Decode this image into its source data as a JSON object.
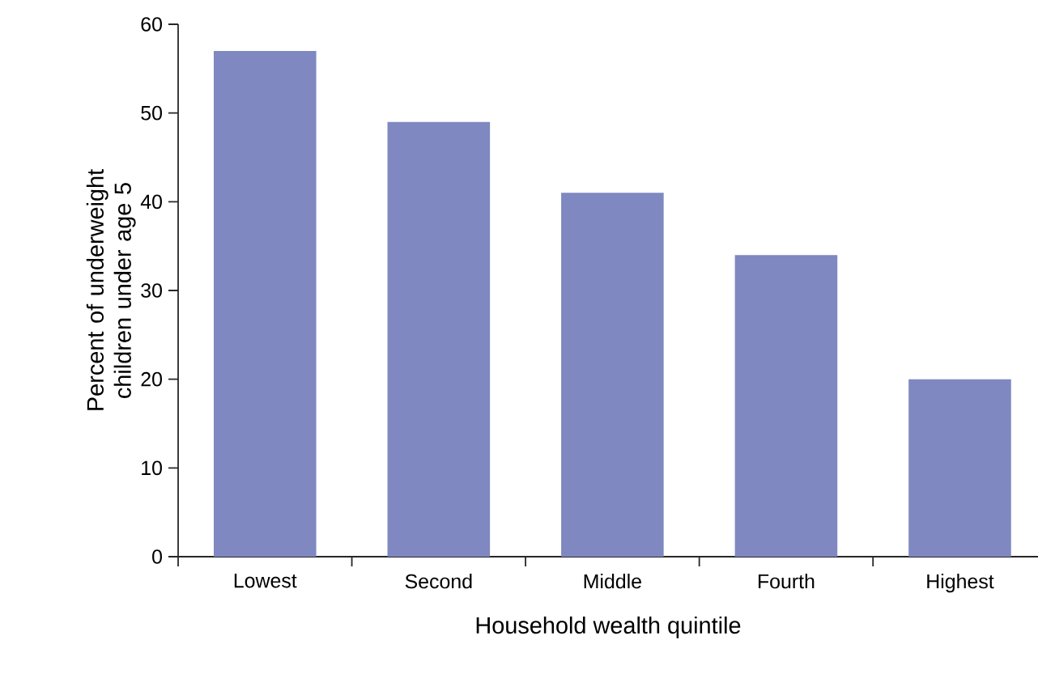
{
  "chart_data": {
    "type": "bar",
    "xlabel": "Household wealth quintile",
    "ylabel": "Percent of underweight children under age 5",
    "categories": [
      "Lowest",
      "Second",
      "Middle",
      "Fourth",
      "Highest"
    ],
    "values": [
      57,
      49,
      41,
      34,
      20
    ],
    "color": "#7f88c0",
    "ylim": [
      0,
      60
    ],
    "yticks": [
      0,
      10,
      20,
      30,
      40,
      50,
      60
    ],
    "grid": false
  }
}
